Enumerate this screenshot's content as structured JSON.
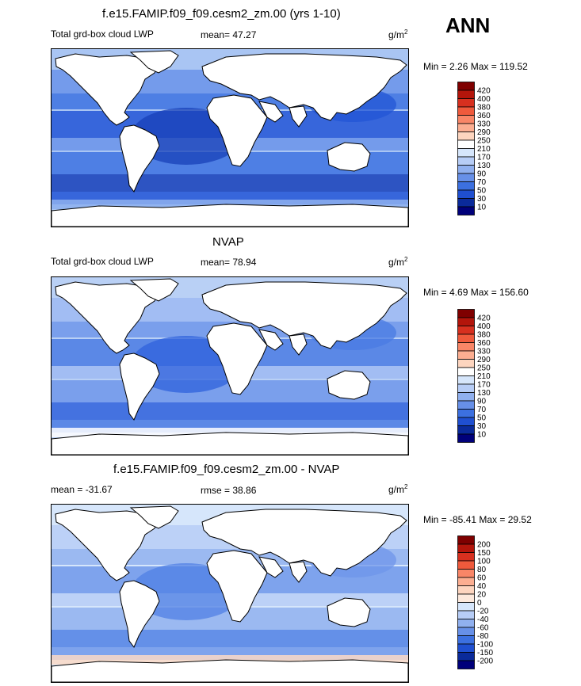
{
  "season": "ANN",
  "panels": [
    {
      "title": "f.e15.FAMIP.f09_f09.cesm2_zm.00 (yrs 1-10)",
      "left_label": "Total grd-box cloud LWP",
      "center_label": "mean=  47.27",
      "units": "g/m",
      "units_sup": "2",
      "minmax": "Min =   2.26 Max = 119.52",
      "colorbar": {
        "labels": [
          "420",
          "400",
          "380",
          "360",
          "330",
          "290",
          "250",
          "210",
          "170",
          "130",
          "90",
          "70",
          "50",
          "30",
          "10"
        ],
        "colors": [
          "#7f0000",
          "#b3150b",
          "#d7301f",
          "#ef5a3c",
          "#f98667",
          "#fcae91",
          "#fdd5bf",
          "#ffffff",
          "#d6e6fb",
          "#b7cdf6",
          "#90b0ef",
          "#6790e8",
          "#3c70e0",
          "#1f4fd0",
          "#0a2a9a",
          "#00007a"
        ]
      },
      "map_colors": {
        "background": "#a9c5f3",
        "band_a": "#6b93e9",
        "band_b": "#3e72e1",
        "band_c": "#2355d6",
        "band_d": "#1840b8",
        "polar": "#8eb0ef"
      }
    },
    {
      "title": "NVAP",
      "left_label": "Total grd-box cloud LWP",
      "center_label": "mean=  78.94",
      "units": "g/m",
      "units_sup": "2",
      "minmax": "Min =   4.69 Max = 156.60",
      "colorbar": {
        "labels": [
          "420",
          "400",
          "380",
          "360",
          "330",
          "290",
          "250",
          "210",
          "170",
          "130",
          "90",
          "70",
          "50",
          "30",
          "10"
        ],
        "colors": [
          "#7f0000",
          "#b3150b",
          "#d7301f",
          "#ef5a3c",
          "#f98667",
          "#fcae91",
          "#fdd5bf",
          "#ffffff",
          "#d6e6fb",
          "#b7cdf6",
          "#90b0ef",
          "#6790e8",
          "#3c70e0",
          "#1f4fd0",
          "#0a2a9a",
          "#00007a"
        ]
      },
      "map_colors": {
        "background": "#b9d0f5",
        "band_a": "#9dbaf2",
        "band_b": "#6f96ea",
        "band_c": "#4a7be3",
        "band_d": "#2f62dc",
        "polar": "#ffffff"
      }
    },
    {
      "title": "f.e15.FAMIP.f09_f09.cesm2_zm.00 - NVAP",
      "left_label": "mean = -31.67",
      "center_label": "rmse =  38.86",
      "units": "g/m",
      "units_sup": "2",
      "minmax": "Min = -85.41 Max =  29.52",
      "colorbar": {
        "labels": [
          "200",
          "150",
          "100",
          "80",
          "60",
          "40",
          "20",
          "0",
          "-20",
          "-40",
          "-60",
          "-80",
          "-100",
          "-150",
          "-200"
        ],
        "colors": [
          "#7f0000",
          "#b3150b",
          "#d7301f",
          "#ef5a3c",
          "#f98667",
          "#fcae91",
          "#fdd5bf",
          "#fde9dc",
          "#d6e6fb",
          "#b7cdf6",
          "#90b0ef",
          "#6790e8",
          "#3c70e0",
          "#1f4fd0",
          "#0a2a9a",
          "#00007a"
        ]
      },
      "map_colors": {
        "background": "#d6e6fb",
        "band_a": "#b7cdf6",
        "band_b": "#90b0ef",
        "band_c": "#6f96ea",
        "band_d": "#5080e4",
        "polar": "#fbd9c6"
      }
    }
  ]
}
